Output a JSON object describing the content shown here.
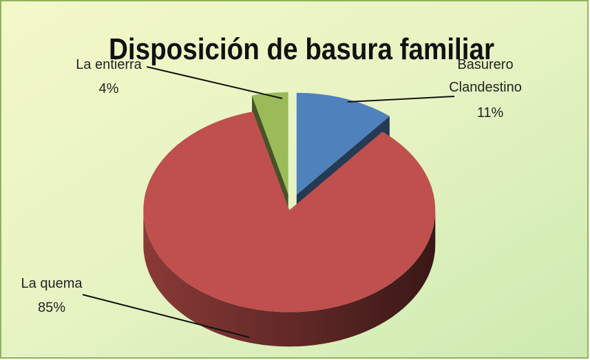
{
  "chart_data": {
    "type": "pie3d",
    "title": "Disposición de basura familiar",
    "categories": [
      "Basurero Clandestino",
      "La quema",
      "La entierra"
    ],
    "values": [
      11,
      85,
      4
    ],
    "value_labels": [
      "11%",
      "85%",
      "4%"
    ],
    "colors": [
      "#4f81bd",
      "#c0504d",
      "#9bbb59"
    ]
  }
}
